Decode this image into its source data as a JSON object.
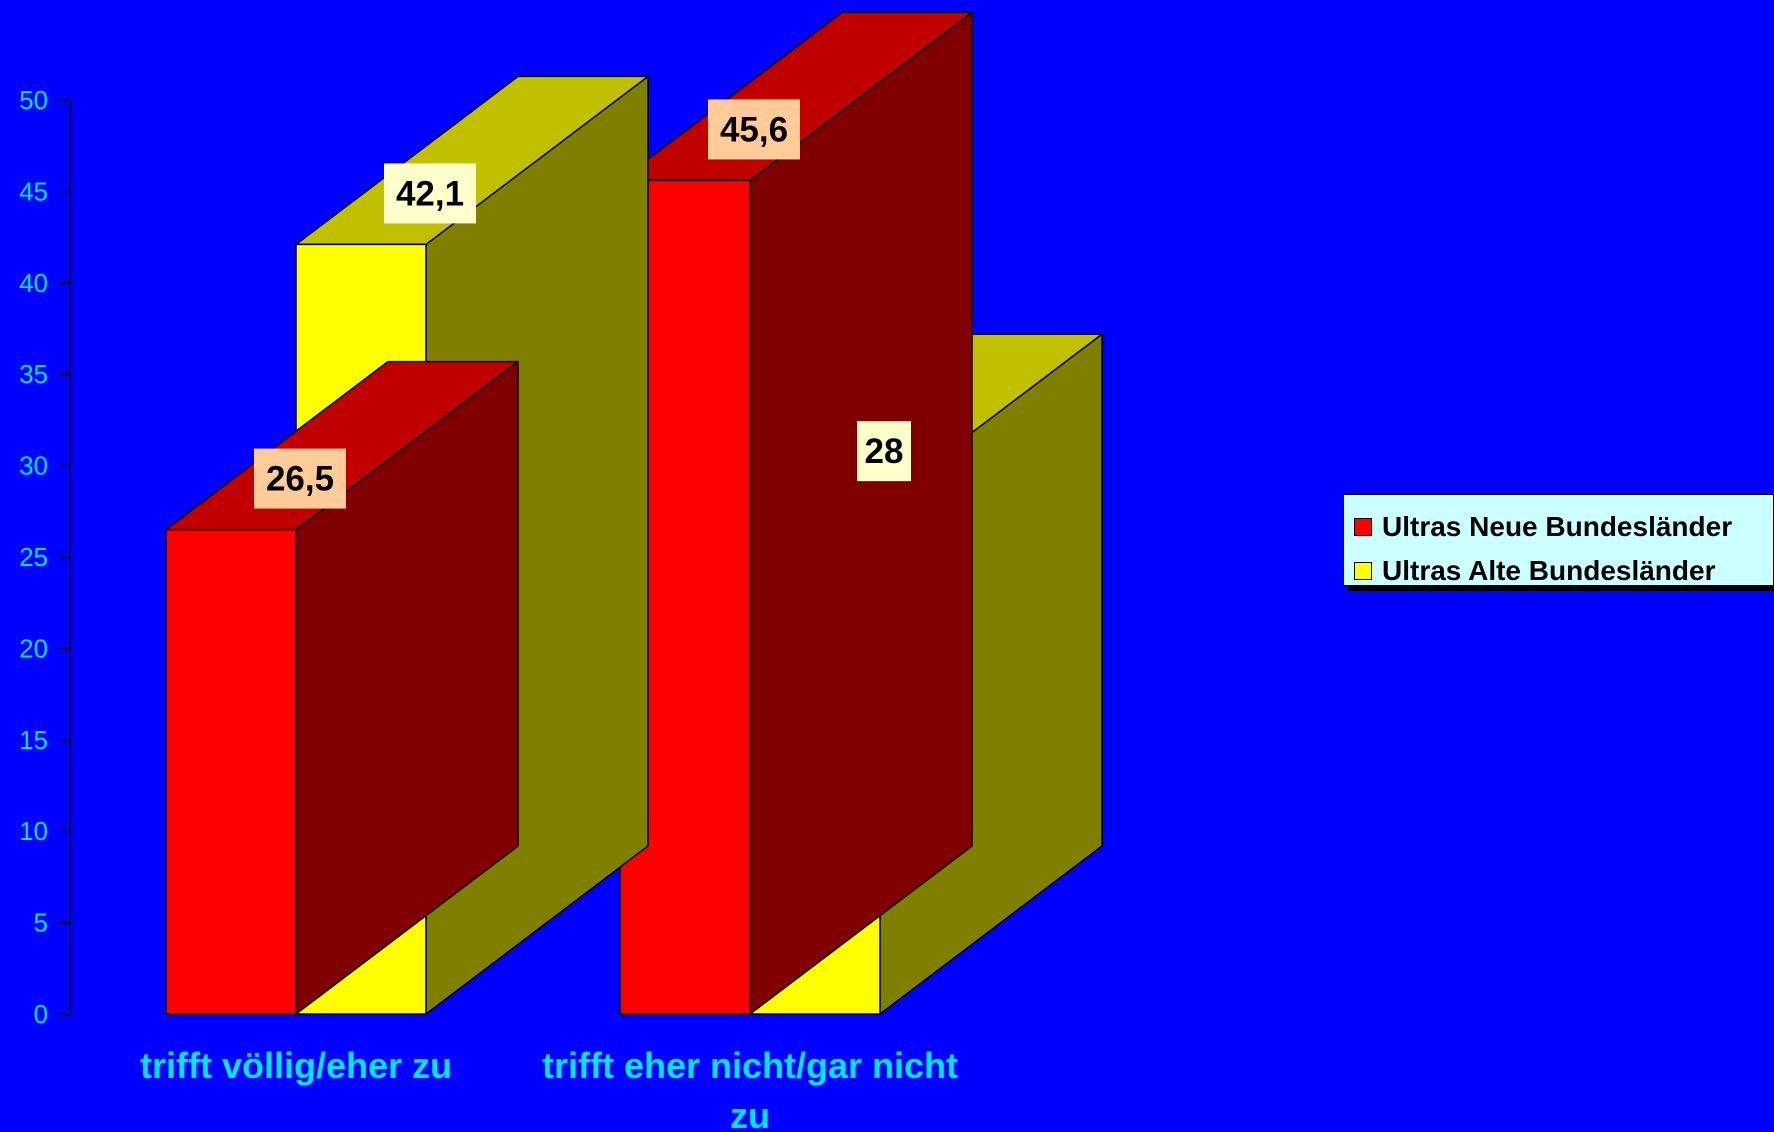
{
  "chart_data": {
    "type": "bar",
    "categories": [
      "trifft völlig/eher zu",
      "trifft eher nicht/gar nicht zu"
    ],
    "category_label_lines": [
      [
        "trifft völlig/eher zu"
      ],
      [
        "trifft eher nicht/gar nicht",
        "zu"
      ]
    ],
    "series": [
      {
        "name": "Ultras Neue Bundesländer",
        "values": [
          26.5,
          45.6
        ],
        "value_labels": [
          "26,5",
          "45,6"
        ],
        "color": "#FF0000",
        "side_color": "#800000",
        "top_color": "#C00000",
        "label_bg": "#FFCC99"
      },
      {
        "name": "Ultras Alte Bundesländer",
        "values": [
          42.1,
          28
        ],
        "value_labels": [
          "42,1",
          "28"
        ],
        "color": "#FFFF00",
        "side_color": "#808000",
        "top_color": "#C0C000",
        "label_bg": "#FFFFCC"
      }
    ],
    "yticks": [
      0,
      5,
      10,
      15,
      20,
      25,
      30,
      35,
      40,
      45,
      50
    ],
    "ylim": [
      0,
      50
    ],
    "title": "",
    "xlabel": "",
    "ylabel": "",
    "legend_position": "right",
    "style_3d": true,
    "background": "#0000FF",
    "axis_text_color": "#00E5FF"
  }
}
